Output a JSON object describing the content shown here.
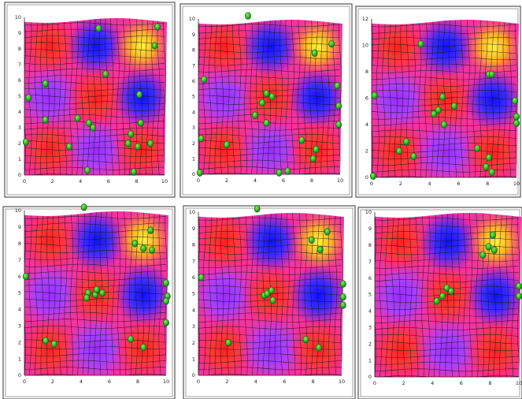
{
  "chart_data": [
    {
      "type": "scatter",
      "xlim": [
        0,
        10
      ],
      "ylim": [
        0,
        10
      ],
      "x_ticks": [
        "0",
        "2",
        "4",
        "6",
        "8",
        "10"
      ],
      "y_ticks": [
        "0",
        "1",
        "2",
        "3",
        "4",
        "5",
        "6",
        "7",
        "8",
        "9",
        "10"
      ],
      "background": "deformed 3x3 grid heatmap",
      "grid": true,
      "points": [
        {
          "x": 5.3,
          "y": 9.3
        },
        {
          "x": 9.5,
          "y": 9.4
        },
        {
          "x": 9.3,
          "y": 8.2
        },
        {
          "x": 1.5,
          "y": 5.8
        },
        {
          "x": 0.3,
          "y": 4.9
        },
        {
          "x": 5.8,
          "y": 6.4
        },
        {
          "x": 8.2,
          "y": 5.1
        },
        {
          "x": 1.5,
          "y": 3.5
        },
        {
          "x": 3.8,
          "y": 3.6
        },
        {
          "x": 4.6,
          "y": 3.3
        },
        {
          "x": 4.9,
          "y": 3.0
        },
        {
          "x": 8.3,
          "y": 3.3
        },
        {
          "x": 7.6,
          "y": 2.6
        },
        {
          "x": 7.4,
          "y": 2.0
        },
        {
          "x": 8.1,
          "y": 1.8
        },
        {
          "x": 9.0,
          "y": 2.0
        },
        {
          "x": 3.2,
          "y": 1.8
        },
        {
          "x": 0.1,
          "y": 2.1
        },
        {
          "x": 4.5,
          "y": 0.3
        },
        {
          "x": 7.8,
          "y": 0.2
        }
      ]
    },
    {
      "type": "scatter",
      "xlim": [
        0,
        10
      ],
      "ylim": [
        0,
        10
      ],
      "x_ticks": [
        "0",
        "2",
        "4",
        "6",
        "8",
        "10"
      ],
      "y_ticks": [
        "0",
        "1",
        "2",
        "3",
        "4",
        "5",
        "6",
        "7",
        "8",
        "9",
        "10"
      ],
      "background": "deformed 3x3 grid heatmap",
      "grid": true,
      "points": [
        {
          "x": 3.5,
          "y": 10.2
        },
        {
          "x": 8.2,
          "y": 7.8
        },
        {
          "x": 9.4,
          "y": 8.4
        },
        {
          "x": 0.4,
          "y": 6.1
        },
        {
          "x": 4.8,
          "y": 5.2
        },
        {
          "x": 5.2,
          "y": 5.0
        },
        {
          "x": 4.5,
          "y": 4.6
        },
        {
          "x": 9.8,
          "y": 5.7
        },
        {
          "x": 9.9,
          "y": 4.4
        },
        {
          "x": 9.9,
          "y": 3.2
        },
        {
          "x": 4.0,
          "y": 3.8
        },
        {
          "x": 4.8,
          "y": 3.3
        },
        {
          "x": 0.2,
          "y": 2.3
        },
        {
          "x": 2.0,
          "y": 1.9
        },
        {
          "x": 7.3,
          "y": 2.2
        },
        {
          "x": 8.3,
          "y": 1.6
        },
        {
          "x": 8.1,
          "y": 1.0
        },
        {
          "x": 5.7,
          "y": 0.1
        },
        {
          "x": 6.3,
          "y": 0.2
        },
        {
          "x": 0.1,
          "y": 0.1
        }
      ]
    },
    {
      "type": "scatter",
      "xlim": [
        0,
        10
      ],
      "ylim": [
        0,
        12
      ],
      "x_ticks": [
        "0",
        "2",
        "4",
        "6",
        "8",
        "10"
      ],
      "y_ticks": [
        "0",
        "2",
        "4",
        "6",
        "8",
        "10",
        "12"
      ],
      "background": "deformed 3x3 grid heatmap",
      "grid": true,
      "points": [
        {
          "x": 3.4,
          "y": 10.1
        },
        {
          "x": 8.1,
          "y": 7.8
        },
        {
          "x": 8.3,
          "y": 7.8
        },
        {
          "x": 0.2,
          "y": 6.2
        },
        {
          "x": 4.9,
          "y": 6.1
        },
        {
          "x": 4.6,
          "y": 5.1
        },
        {
          "x": 5.7,
          "y": 5.4
        },
        {
          "x": 4.3,
          "y": 4.8
        },
        {
          "x": 5.0,
          "y": 4.0
        },
        {
          "x": 9.9,
          "y": 5.8
        },
        {
          "x": 10.0,
          "y": 4.6
        },
        {
          "x": 10.0,
          "y": 4.1
        },
        {
          "x": 2.4,
          "y": 2.7
        },
        {
          "x": 1.9,
          "y": 2.0
        },
        {
          "x": 2.9,
          "y": 1.6
        },
        {
          "x": 7.3,
          "y": 2.2
        },
        {
          "x": 8.1,
          "y": 1.5
        },
        {
          "x": 7.9,
          "y": 0.8
        },
        {
          "x": 8.3,
          "y": 0.4
        },
        {
          "x": 0.1,
          "y": 0.1
        }
      ]
    },
    {
      "type": "scatter",
      "xlim": [
        0,
        10
      ],
      "ylim": [
        0,
        10
      ],
      "x_ticks": [
        "0",
        "2",
        "4",
        "6",
        "8",
        "10"
      ],
      "y_ticks": [
        "0",
        "1",
        "2",
        "3",
        "4",
        "5",
        "6",
        "7",
        "8",
        "9",
        "10"
      ],
      "background": "deformed 3x3 grid heatmap",
      "grid": true,
      "points": [
        {
          "x": 4.2,
          "y": 10.2
        },
        {
          "x": 8.9,
          "y": 8.8
        },
        {
          "x": 7.8,
          "y": 8.0
        },
        {
          "x": 8.4,
          "y": 7.7
        },
        {
          "x": 9.0,
          "y": 7.6
        },
        {
          "x": 0.1,
          "y": 6.0
        },
        {
          "x": 4.5,
          "y": 5.0
        },
        {
          "x": 4.4,
          "y": 4.7
        },
        {
          "x": 5.0,
          "y": 4.9
        },
        {
          "x": 5.5,
          "y": 5.0
        },
        {
          "x": 10.0,
          "y": 5.6
        },
        {
          "x": 10.1,
          "y": 4.8
        },
        {
          "x": 10.0,
          "y": 4.5
        },
        {
          "x": 10.0,
          "y": 3.2
        },
        {
          "x": 1.5,
          "y": 2.1
        },
        {
          "x": 2.1,
          "y": 1.9
        },
        {
          "x": 7.5,
          "y": 2.2
        },
        {
          "x": 8.4,
          "y": 1.7
        },
        {
          "x": 5.1,
          "y": 5.2
        }
      ]
    },
    {
      "type": "scatter",
      "xlim": [
        0,
        10
      ],
      "ylim": [
        0,
        10
      ],
      "x_ticks": [
        "0",
        "2",
        "4",
        "6",
        "8",
        "10"
      ],
      "y_ticks": [
        "0",
        "1",
        "2",
        "3",
        "4",
        "5",
        "6",
        "7",
        "8",
        "9",
        "10"
      ],
      "background": "deformed 3x3 grid heatmap",
      "grid": true,
      "points": [
        {
          "x": 4.1,
          "y": 10.2
        },
        {
          "x": 9.0,
          "y": 8.8
        },
        {
          "x": 7.9,
          "y": 8.3
        },
        {
          "x": 8.5,
          "y": 7.7
        },
        {
          "x": 0.2,
          "y": 6.0
        },
        {
          "x": 4.6,
          "y": 4.9
        },
        {
          "x": 5.1,
          "y": 5.2
        },
        {
          "x": 4.8,
          "y": 5.0
        },
        {
          "x": 5.2,
          "y": 4.6
        },
        {
          "x": 10.1,
          "y": 5.6
        },
        {
          "x": 10.1,
          "y": 4.8
        },
        {
          "x": 10.1,
          "y": 4.3
        },
        {
          "x": 2.1,
          "y": 2.0
        },
        {
          "x": 7.5,
          "y": 2.2
        },
        {
          "x": 8.4,
          "y": 1.7
        }
      ]
    },
    {
      "type": "scatter",
      "xlim": [
        0,
        10
      ],
      "ylim": [
        0,
        10
      ],
      "x_ticks": [
        "0",
        "2",
        "4",
        "6",
        "8",
        "10"
      ],
      "y_ticks": [
        "0",
        "1",
        "2",
        "3",
        "4",
        "5",
        "6",
        "7",
        "8",
        "9",
        "10"
      ],
      "background": "deformed 3x3 grid heatmap",
      "grid": true,
      "points": [
        {
          "x": 8.2,
          "y": 8.6
        },
        {
          "x": 7.9,
          "y": 7.9
        },
        {
          "x": 8.3,
          "y": 7.7
        },
        {
          "x": 7.5,
          "y": 7.4
        },
        {
          "x": 4.7,
          "y": 4.9
        },
        {
          "x": 5.0,
          "y": 5.4
        },
        {
          "x": 5.3,
          "y": 5.2
        },
        {
          "x": 4.3,
          "y": 4.6
        },
        {
          "x": 10.0,
          "y": 5.5
        },
        {
          "x": 10.0,
          "y": 4.9
        }
      ]
    }
  ]
}
